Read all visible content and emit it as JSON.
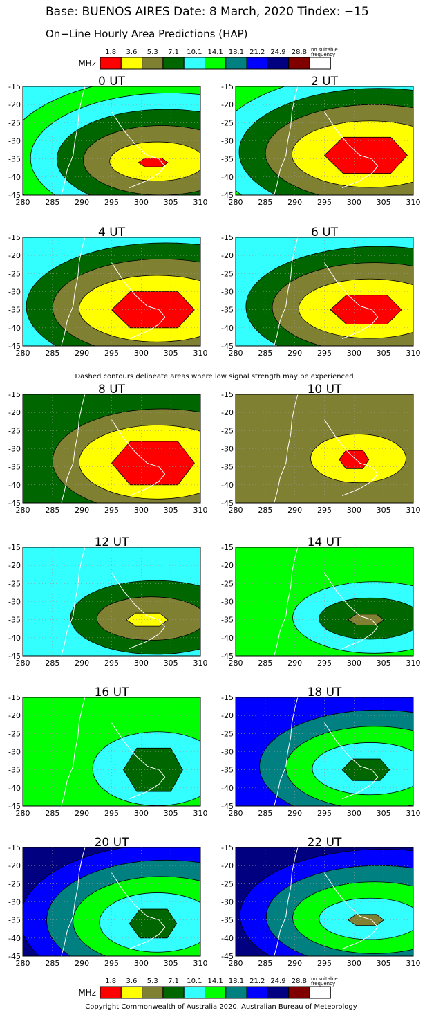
{
  "header": {
    "title_line": "Base: BUENOS AIRES Date: 8 March, 2020 Tindex: −15",
    "subtitle": "On−Line Hourly Area Predictions (HAP)"
  },
  "mid_note": "Dashed contours delineate areas where low signal strength may be experienced",
  "copyright": "Copyright Commonwealth of Australia 2020, Australian Bureau of Meteorology",
  "legend": {
    "unit": "MHz",
    "thresholds": [
      "1.8",
      "3.6",
      "5.3",
      "7.1",
      "10.1",
      "14.1",
      "18.1",
      "21.2",
      "24.9",
      "28.8"
    ],
    "no_freq_line1": "no suitable",
    "no_freq_line2": "frequency",
    "colors": [
      "#ff0000",
      "#ffff00",
      "#808033",
      "#006600",
      "#33ffff",
      "#00ff00",
      "#008080",
      "#0000ff",
      "#000080",
      "#800000",
      "#ffffff"
    ]
  },
  "chart_data": {
    "type": "heatmap",
    "x_ticks": [
      "280",
      "285",
      "290",
      "295",
      "300",
      "305",
      "310"
    ],
    "y_ticks": [
      "-15",
      "-20",
      "-25",
      "-30",
      "-35",
      "-40",
      "-45"
    ],
    "xlim": [
      280,
      310
    ],
    "ylim": [
      -45,
      -15
    ],
    "panels": [
      {
        "title": "0 UT",
        "bg": 4,
        "bands": [
          5,
          4,
          3,
          2,
          1
        ],
        "center": [
          302,
          -36
        ],
        "core": 0,
        "core_r": [
          2.5,
          1.2
        ]
      },
      {
        "title": "2 UT",
        "bg": 5,
        "bands": [
          4,
          3,
          2,
          1
        ],
        "center": [
          302,
          -34
        ],
        "core": 0,
        "core_r": [
          7,
          5
        ]
      },
      {
        "title": "4 UT",
        "bg": 4,
        "bands": [
          3,
          2,
          1
        ],
        "center": [
          302,
          -35
        ],
        "core": 0,
        "core_r": [
          7,
          5
        ]
      },
      {
        "title": "6 UT",
        "bg": 4,
        "bands": [
          3,
          2,
          1
        ],
        "center": [
          302,
          -35
        ],
        "core": 0,
        "core_r": [
          6,
          4
        ]
      },
      {
        "title": "8 UT",
        "bg": 3,
        "bands": [
          2,
          1
        ],
        "center": [
          302,
          -34
        ],
        "core": 0,
        "core_r": [
          7,
          6
        ]
      },
      {
        "title": "10 UT",
        "bg": 2,
        "bands": [
          1
        ],
        "center": [
          300,
          -33
        ],
        "core": 0,
        "core_r": [
          2.5,
          2.5
        ]
      },
      {
        "title": "12 UT",
        "bg": 4,
        "bands": [
          3,
          2
        ],
        "center": [
          301,
          -35
        ],
        "core": 1,
        "core_r": [
          3.5,
          1.8
        ]
      },
      {
        "title": "14 UT",
        "bg": 5,
        "bands": [
          4,
          3
        ],
        "center": [
          302,
          -35
        ],
        "core": 2,
        "core_r": [
          3,
          1.5
        ]
      },
      {
        "title": "16 UT",
        "bg": 5,
        "bands": [
          4
        ],
        "center": [
          302,
          -35
        ],
        "core": 3,
        "core_r": [
          5,
          6
        ]
      },
      {
        "title": "18 UT",
        "bg": 7,
        "bands": [
          6,
          5,
          4
        ],
        "center": [
          302,
          -35
        ],
        "core": 3,
        "core_r": [
          4,
          3
        ]
      },
      {
        "title": "20 UT",
        "bg": 8,
        "bands": [
          7,
          6,
          5,
          4
        ],
        "center": [
          302,
          -36
        ],
        "core": 3,
        "core_r": [
          4,
          4
        ]
      },
      {
        "title": "22 UT",
        "bg": 8,
        "bands": [
          7,
          6,
          5,
          4
        ],
        "center": [
          302,
          -35
        ],
        "core": 2,
        "core_r": [
          3,
          1.5
        ]
      }
    ]
  }
}
